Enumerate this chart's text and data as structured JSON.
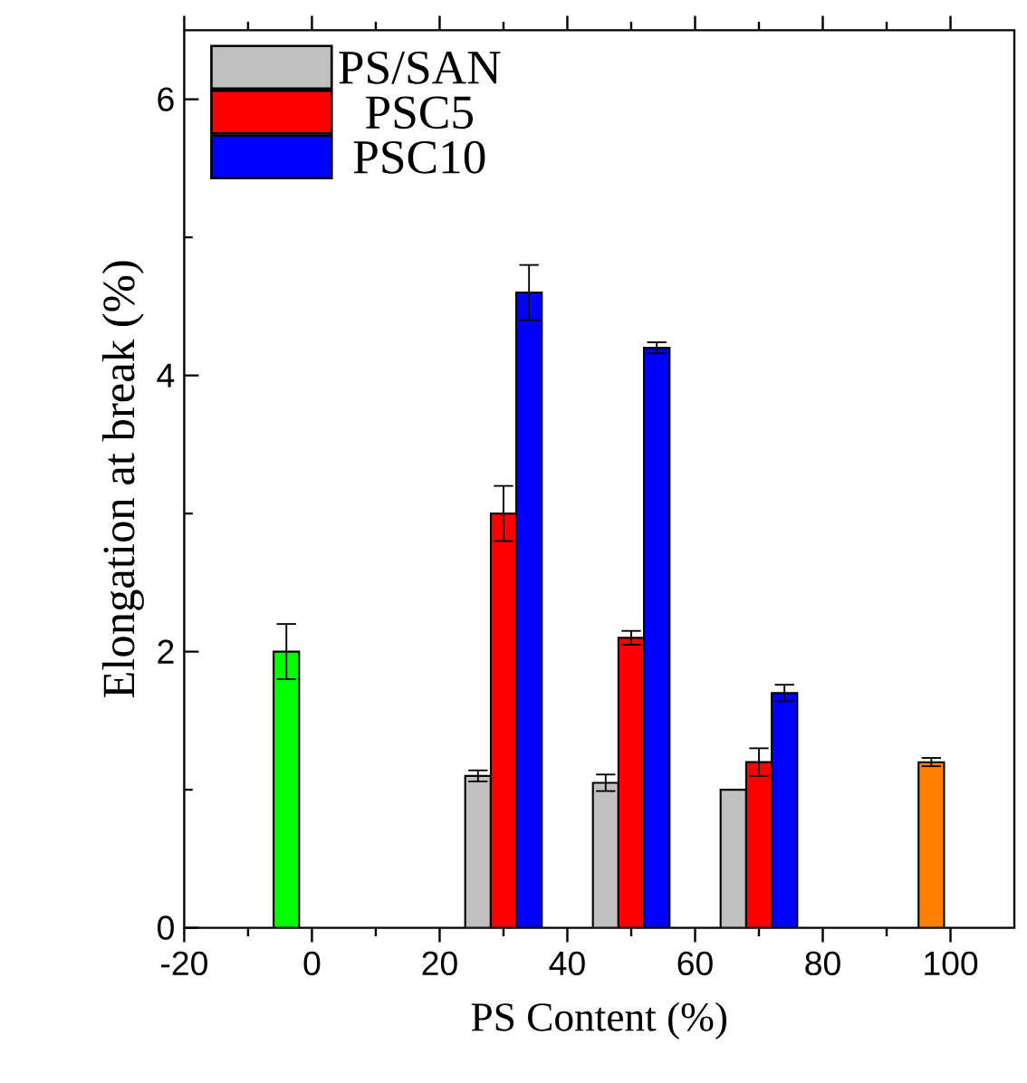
{
  "chart_data": {
    "type": "bar",
    "xlabel": "PS Content (%)",
    "ylabel": "Elongation at break (%)",
    "xlim": [
      -20,
      110
    ],
    "ylim": [
      0,
      6.5
    ],
    "xticks": [
      -20,
      0,
      20,
      40,
      60,
      80,
      100
    ],
    "yticks": [
      0,
      2,
      4,
      6
    ],
    "legend": "top left",
    "series": [
      {
        "color": "#00ff00",
        "x": [
          -4
        ],
        "values": [
          2.0
        ],
        "errors": [
          0.2
        ]
      },
      {
        "name": "PS/SAN",
        "color": "#c0c0c0",
        "x": [
          26,
          46,
          66
        ],
        "values": [
          1.1,
          1.05,
          1.0
        ],
        "errors": [
          0.04,
          0.06,
          null
        ]
      },
      {
        "name": "PSC5",
        "color": "#ff0000",
        "x": [
          30,
          50,
          70
        ],
        "values": [
          3.0,
          2.1,
          1.2
        ],
        "errors": [
          0.2,
          0.05,
          0.1
        ]
      },
      {
        "name": "PSC10",
        "color": "#0000ff",
        "x": [
          34,
          54,
          74
        ],
        "values": [
          4.6,
          4.2,
          1.7
        ],
        "errors": [
          0.2,
          0.04,
          0.06
        ]
      },
      {
        "color": "#ff8000",
        "x": [
          97
        ],
        "values": [
          1.2
        ],
        "errors": [
          0.03
        ]
      }
    ]
  }
}
